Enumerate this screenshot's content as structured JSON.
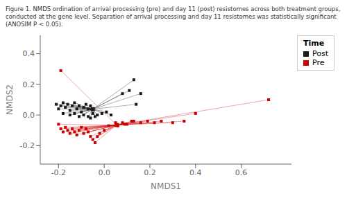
{
  "chart_data": {
    "type": "scatter",
    "title": "Figure 1. NMDS ordination of arrival processing (pre) and day 11 (post) resistomes across both treatment groups, conducted at the gene level. Separation of arrival processing and day 11 resistomes was statistically significant (ANOSIM P < 0.05).",
    "x_label": "NMDS1",
    "y_label": "NMDS2",
    "xlim": [
      -0.28,
      0.82
    ],
    "ylim": [
      -0.32,
      0.52
    ],
    "xticks": [
      -0.2,
      {
        "value": 0.0,
        "label": "0.0"
      },
      0.2,
      0.4,
      0.6
    ],
    "yticks": [
      -0.2,
      {
        "value": 0.0,
        "label": "0.0"
      },
      0.2,
      0.4
    ],
    "grid": false,
    "legend": "upper right",
    "legend_title": "Time",
    "marker": "square",
    "series": [
      {
        "name": "Post",
        "color": "#1a1a1a",
        "centroid": [
          -0.05,
          0.038
        ],
        "values": [
          [
            -0.21,
            0.07
          ],
          [
            -0.2,
            0.04
          ],
          [
            -0.19,
            0.06
          ],
          [
            -0.18,
            0.08
          ],
          [
            -0.17,
            0.05
          ],
          [
            -0.16,
            0.07
          ],
          [
            -0.15,
            0.03
          ],
          [
            -0.14,
            0.06
          ],
          [
            -0.13,
            0.08
          ],
          [
            -0.12,
            0.04
          ],
          [
            -0.11,
            0.06
          ],
          [
            -0.1,
            0.02
          ],
          [
            -0.09,
            0.05
          ],
          [
            -0.08,
            0.07
          ],
          [
            -0.07,
            0.04
          ],
          [
            -0.06,
            0.06
          ],
          [
            -0.18,
            0.01
          ],
          [
            -0.15,
            0.0
          ],
          [
            -0.13,
            0.01
          ],
          [
            -0.11,
            -0.01
          ],
          [
            -0.09,
            0.0
          ],
          [
            -0.07,
            -0.01
          ],
          [
            -0.05,
            0.01
          ],
          [
            -0.03,
            0.0
          ],
          [
            -0.01,
            0.01
          ],
          [
            0.01,
            0.02
          ],
          [
            0.03,
            0.0
          ],
          [
            0.08,
            0.14
          ],
          [
            0.11,
            0.16
          ],
          [
            0.13,
            0.23
          ],
          [
            0.16,
            0.14
          ],
          [
            0.14,
            0.07
          ],
          [
            -0.04,
            -0.01
          ],
          [
            -0.06,
            -0.02
          ]
        ]
      },
      {
        "name": "Pre",
        "color": "#cc0000",
        "centroid": [
          0.055,
          -0.065
        ],
        "values": [
          [
            -0.2,
            -0.06
          ],
          [
            -0.19,
            -0.09
          ],
          [
            -0.18,
            -0.11
          ],
          [
            -0.17,
            -0.08
          ],
          [
            -0.16,
            -0.1
          ],
          [
            -0.15,
            -0.12
          ],
          [
            -0.14,
            -0.09
          ],
          [
            -0.13,
            -0.11
          ],
          [
            -0.12,
            -0.13
          ],
          [
            -0.11,
            -0.1
          ],
          [
            -0.1,
            -0.08
          ],
          [
            -0.09,
            -0.12
          ],
          [
            -0.08,
            -0.09
          ],
          [
            -0.07,
            -0.11
          ],
          [
            -0.06,
            -0.14
          ],
          [
            -0.05,
            -0.16
          ],
          [
            -0.04,
            -0.18
          ],
          [
            -0.03,
            -0.14
          ],
          [
            -0.02,
            -0.12
          ],
          [
            0.0,
            -0.1
          ],
          [
            0.02,
            -0.07
          ],
          [
            0.05,
            -0.05
          ],
          [
            0.08,
            -0.05
          ],
          [
            0.1,
            -0.06
          ],
          [
            0.13,
            -0.04
          ],
          [
            0.16,
            -0.05
          ],
          [
            0.19,
            -0.04
          ],
          [
            0.22,
            -0.05
          ],
          [
            0.25,
            -0.04
          ],
          [
            0.3,
            -0.05
          ],
          [
            0.35,
            -0.04
          ],
          [
            0.4,
            0.01
          ],
          [
            0.72,
            0.1
          ],
          [
            -0.19,
            0.29
          ],
          [
            0.06,
            -0.07
          ],
          [
            0.09,
            -0.06
          ],
          [
            0.12,
            -0.04
          ]
        ]
      }
    ]
  }
}
